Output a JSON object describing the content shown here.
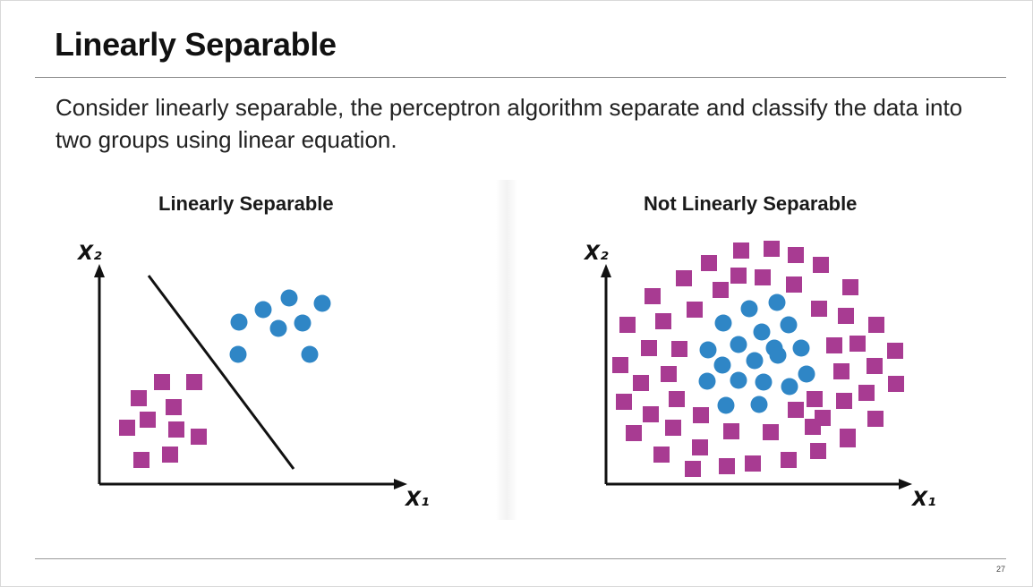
{
  "slide": {
    "title": "Linearly Separable",
    "body": "Consider linearly separable, the perceptron algorithm separate and classify the data into two groups using linear equation.",
    "page_number": "27"
  },
  "colors": {
    "square": "#a83b92",
    "circle": "#2f86c6",
    "axis": "#111111"
  },
  "diagrams": [
    {
      "id": "linear",
      "title": "Linearly Separable",
      "y_axis_label": "X₂",
      "x_axis_label": "X₁",
      "has_separator": true
    },
    {
      "id": "nonlinear",
      "title": "Not Linearly Separable",
      "y_axis_label": "X₂",
      "x_axis_label": "X₁",
      "has_separator": false
    }
  ]
}
